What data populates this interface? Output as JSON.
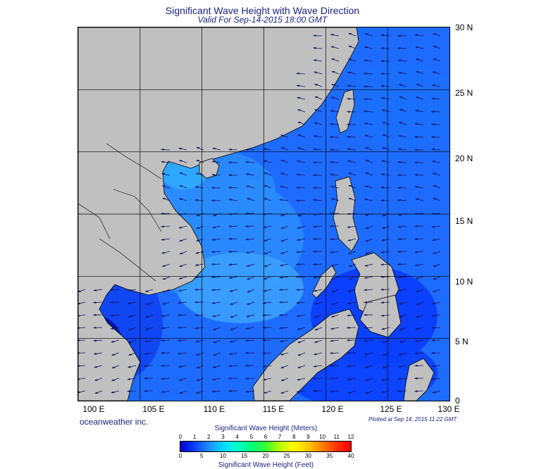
{
  "title": "Significant Wave Height with Wave Direction",
  "subtitle": "Valid For Sep-14-2015 18:00 GMT",
  "credit": "oceanweather inc.",
  "plotted": "Plotted at Sep 14, 2015 11:22 GMT",
  "map": {
    "lon_range": [
      100,
      130
    ],
    "lat_range": [
      0,
      30
    ],
    "lon_labels": [
      "100 E",
      "105 E",
      "110 E",
      "115 E",
      "120 E",
      "125 E",
      "130 E"
    ],
    "lat_labels": [
      "30 N",
      "25 N",
      "20 N",
      "15 N",
      "10 N",
      "5 N",
      "0"
    ],
    "land_color": "#c0c0c0",
    "ocean_colors": [
      "#0000c8",
      "#0a3cff",
      "#1e78ff",
      "#1e90ff",
      "#00c8ff"
    ]
  },
  "colorbar": {
    "title_top": "Significant Wave Height (Meters)",
    "title_bottom": "Significant Wave Height (Feet)",
    "meters_ticks": [
      "0",
      "1",
      "2",
      "3",
      "4",
      "5",
      "6",
      "7",
      "8",
      "9",
      "10",
      "11",
      "12"
    ],
    "feet_ticks": [
      "0",
      "5",
      "10",
      "15",
      "20",
      "25",
      "30",
      "35",
      "40"
    ],
    "colors": [
      "#0000c8",
      "#0a3cff",
      "#1e90ff",
      "#00d8ff",
      "#00ffcc",
      "#00ff80",
      "#33ff33",
      "#b4ff00",
      "#ffff00",
      "#ffc800",
      "#ff8000",
      "#ff3000",
      "#ff0000"
    ]
  }
}
